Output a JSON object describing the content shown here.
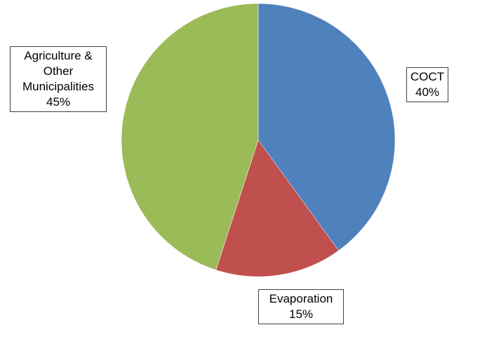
{
  "chart_data": {
    "type": "pie",
    "categories": [
      "COCT",
      "Evaporation",
      "Agriculture & Other Municipalities"
    ],
    "values": [
      40,
      15,
      45
    ],
    "value_labels": [
      "40%",
      "15%",
      "45%"
    ],
    "colors": [
      "#4f81bd",
      "#c0504d",
      "#9bbb59"
    ]
  }
}
